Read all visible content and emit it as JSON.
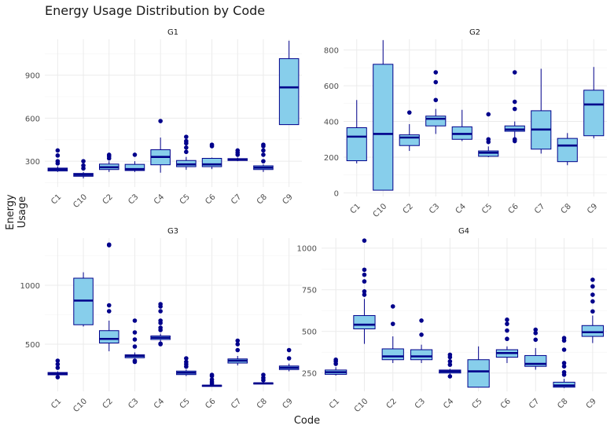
{
  "title": "Energy Usage Distribution by Code",
  "xlabel": "Code",
  "ylabel": "Energy Usage",
  "colors": {
    "box_fill": "#87CEEB",
    "box_stroke": "#00008B",
    "grid": "#EBEBEB",
    "text": "#4D4D4D"
  },
  "chart_data": [
    {
      "type": "box",
      "panel": "G1",
      "categories": [
        "C1",
        "C10",
        "C2",
        "C3",
        "C4",
        "C5",
        "C6",
        "C7",
        "C8",
        "C9"
      ],
      "ylim": [
        120,
        1150
      ],
      "yticks": [
        300,
        600,
        900
      ],
      "boxes": [
        {
          "min": 225,
          "q1": 232,
          "median": 243,
          "q3": 252,
          "max": 265,
          "outliers": [
            285,
            300,
            340,
            375
          ]
        },
        {
          "min": 180,
          "q1": 195,
          "median": 205,
          "q3": 215,
          "max": 225,
          "outliers": [
            250,
            270,
            300
          ]
        },
        {
          "min": 225,
          "q1": 242,
          "median": 258,
          "q3": 280,
          "max": 300,
          "outliers": [
            320,
            335,
            345
          ]
        },
        {
          "min": 225,
          "q1": 235,
          "median": 245,
          "q3": 278,
          "max": 300,
          "outliers": [
            345
          ]
        },
        {
          "min": 220,
          "q1": 275,
          "median": 330,
          "q3": 380,
          "max": 465,
          "outliers": [
            580
          ]
        },
        {
          "min": 240,
          "q1": 262,
          "median": 278,
          "q3": 305,
          "max": 330,
          "outliers": [
            365,
            395,
            425,
            440,
            470
          ]
        },
        {
          "min": 245,
          "q1": 262,
          "median": 278,
          "q3": 320,
          "max": 325,
          "outliers": [
            405,
            415
          ]
        },
        {
          "min": 300,
          "q1": 305,
          "median": 312,
          "q3": 318,
          "max": 325,
          "outliers": [
            345,
            360,
            375
          ]
        },
        {
          "min": 225,
          "q1": 242,
          "median": 255,
          "q3": 268,
          "max": 278,
          "outliers": [
            300,
            345,
            375,
            405,
            415
          ]
        },
        {
          "min": 555,
          "q1": 555,
          "median": 815,
          "q3": 1015,
          "max": 1140,
          "outliers": []
        }
      ]
    },
    {
      "type": "box",
      "panel": "G2",
      "categories": [
        "C1",
        "C10",
        "C2",
        "C3",
        "C4",
        "C5",
        "C6",
        "C7",
        "C8",
        "C9"
      ],
      "ylim": [
        -20,
        860
      ],
      "yticks": [
        0,
        200,
        400,
        600,
        800
      ],
      "boxes": [
        {
          "min": 165,
          "q1": 180,
          "median": 315,
          "q3": 365,
          "max": 520,
          "outliers": []
        },
        {
          "min": 15,
          "q1": 15,
          "median": 330,
          "q3": 720,
          "max": 855,
          "outliers": []
        },
        {
          "min": 235,
          "q1": 265,
          "median": 310,
          "q3": 325,
          "max": 385,
          "outliers": [
            450
          ]
        },
        {
          "min": 330,
          "q1": 375,
          "median": 415,
          "q3": 430,
          "max": 470,
          "outliers": [
            520,
            620,
            675
          ]
        },
        {
          "min": 290,
          "q1": 300,
          "median": 330,
          "q3": 370,
          "max": 465,
          "outliers": []
        },
        {
          "min": 200,
          "q1": 205,
          "median": 225,
          "q3": 235,
          "max": 260,
          "outliers": [
            285,
            300,
            440
          ]
        },
        {
          "min": 305,
          "q1": 345,
          "median": 355,
          "q3": 375,
          "max": 400,
          "outliers": [
            290,
            300,
            470,
            510,
            675
          ]
        },
        {
          "min": 220,
          "q1": 245,
          "median": 355,
          "q3": 460,
          "max": 695,
          "outliers": []
        },
        {
          "min": 155,
          "q1": 175,
          "median": 265,
          "q3": 305,
          "max": 335,
          "outliers": []
        },
        {
          "min": 305,
          "q1": 320,
          "median": 495,
          "q3": 575,
          "max": 705,
          "outliers": []
        }
      ]
    },
    {
      "type": "box",
      "panel": "G3",
      "categories": [
        "C1",
        "C10",
        "C2",
        "C3",
        "C4",
        "C5",
        "C6",
        "C7",
        "C8",
        "C9"
      ],
      "ylim": [
        100,
        1400
      ],
      "yticks": [
        500,
        1000
      ],
      "boxes": [
        {
          "min": 235,
          "q1": 240,
          "median": 250,
          "q3": 260,
          "max": 270,
          "outliers": [
            220,
            300,
            330,
            360
          ]
        },
        {
          "min": 650,
          "q1": 665,
          "median": 870,
          "q3": 1060,
          "max": 1110,
          "outliers": []
        },
        {
          "min": 440,
          "q1": 510,
          "median": 545,
          "q3": 615,
          "max": 700,
          "outliers": [
            780,
            830,
            1340,
            1345
          ]
        },
        {
          "min": 380,
          "q1": 385,
          "median": 400,
          "q3": 410,
          "max": 430,
          "outliers": [
            350,
            360,
            480,
            540,
            600,
            700
          ]
        },
        {
          "min": 520,
          "q1": 540,
          "median": 555,
          "q3": 570,
          "max": 590,
          "outliers": [
            500,
            505,
            620,
            640,
            680,
            700,
            780,
            820,
            840
          ]
        },
        {
          "min": 230,
          "q1": 242,
          "median": 258,
          "q3": 272,
          "max": 285,
          "outliers": [
            310,
            330,
            350,
            380
          ]
        },
        {
          "min": 140,
          "q1": 142,
          "median": 148,
          "q3": 152,
          "max": 155,
          "outliers": [
            165,
            180,
            200,
            230,
            240
          ]
        },
        {
          "min": 320,
          "q1": 340,
          "median": 360,
          "q3": 375,
          "max": 400,
          "outliers": [
            450,
            500,
            530
          ]
        },
        {
          "min": 160,
          "q1": 162,
          "median": 168,
          "q3": 172,
          "max": 175,
          "outliers": [
            195,
            215,
            240
          ]
        },
        {
          "min": 270,
          "q1": 285,
          "median": 300,
          "q3": 315,
          "max": 335,
          "outliers": [
            380,
            450
          ]
        }
      ]
    },
    {
      "type": "box",
      "panel": "G4",
      "categories": [
        "C1",
        "C10",
        "C2",
        "C3",
        "C4",
        "C5",
        "C6",
        "C7",
        "C8",
        "C9"
      ],
      "ylim": [
        140,
        1060
      ],
      "yticks": [
        250,
        500,
        750,
        1000
      ],
      "boxes": [
        {
          "min": 235,
          "q1": 242,
          "median": 255,
          "q3": 268,
          "max": 285,
          "outliers": [
            305,
            320,
            330
          ]
        },
        {
          "min": 425,
          "q1": 515,
          "median": 540,
          "q3": 595,
          "max": 695,
          "outliers": [
            720,
            740,
            800,
            840,
            870,
            1045
          ]
        },
        {
          "min": 310,
          "q1": 330,
          "median": 350,
          "q3": 395,
          "max": 470,
          "outliers": [
            545,
            650
          ]
        },
        {
          "min": 310,
          "q1": 330,
          "median": 350,
          "q3": 390,
          "max": 420,
          "outliers": [
            480,
            565
          ]
        },
        {
          "min": 240,
          "q1": 250,
          "median": 260,
          "q3": 268,
          "max": 275,
          "outliers": [
            230,
            300,
            320,
            345,
            360
          ]
        },
        {
          "min": 165,
          "q1": 165,
          "median": 260,
          "q3": 330,
          "max": 410,
          "outliers": []
        },
        {
          "min": 310,
          "q1": 345,
          "median": 370,
          "q3": 390,
          "max": 410,
          "outliers": [
            455,
            505,
            545,
            570
          ]
        },
        {
          "min": 270,
          "q1": 290,
          "median": 305,
          "q3": 355,
          "max": 400,
          "outliers": [
            450,
            490,
            510
          ]
        },
        {
          "min": 160,
          "q1": 165,
          "median": 175,
          "q3": 195,
          "max": 215,
          "outliers": [
            240,
            255,
            290,
            310,
            390,
            445,
            460
          ]
        },
        {
          "min": 430,
          "q1": 470,
          "median": 495,
          "q3": 535,
          "max": 595,
          "outliers": [
            620,
            680,
            720,
            770,
            810
          ]
        }
      ]
    }
  ]
}
